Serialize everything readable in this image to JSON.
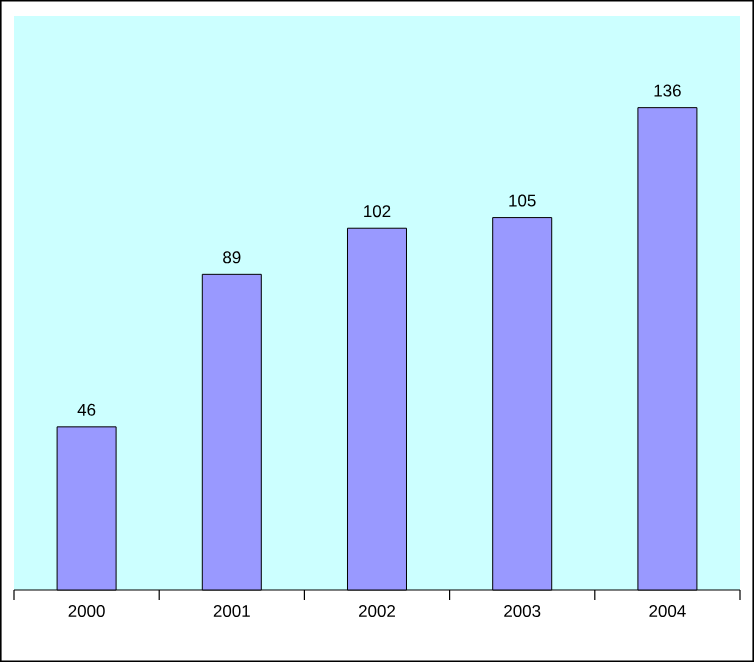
{
  "chart_data": {
    "type": "bar",
    "categories": [
      "2000",
      "2001",
      "2002",
      "2003",
      "2004"
    ],
    "values": [
      46,
      89,
      102,
      105,
      136
    ],
    "color": "#9999ff",
    "data_labels": true
  }
}
